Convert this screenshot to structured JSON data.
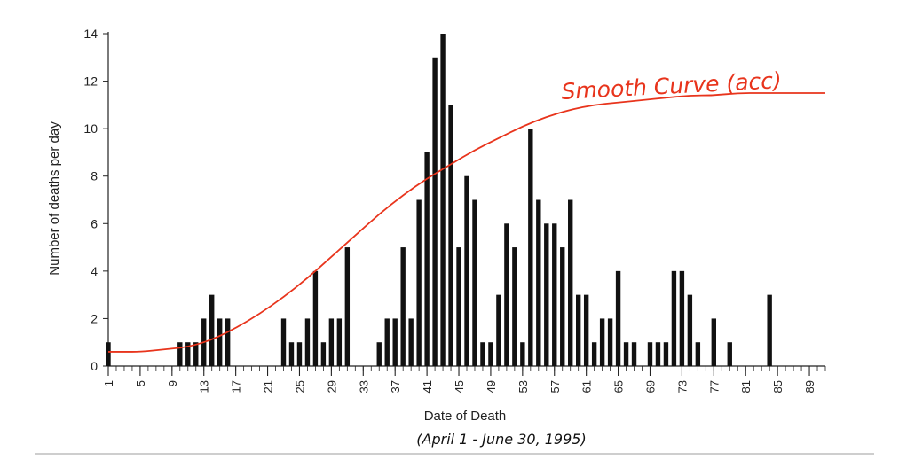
{
  "chart_data": {
    "type": "bar",
    "title": "",
    "xlabel": "Date of Death",
    "ylabel": "Number of deaths per day",
    "xlim": [
      1,
      91
    ],
    "ylim": [
      0,
      14
    ],
    "y_ticks": [
      0,
      2,
      4,
      6,
      8,
      10,
      12,
      14
    ],
    "x_tick_labels": [
      "1",
      "5",
      "9",
      "13",
      "17",
      "21",
      "25",
      "29",
      "33",
      "37",
      "41",
      "45",
      "49",
      "53",
      "57",
      "61",
      "65",
      "69",
      "73",
      "77",
      "81",
      "85",
      "89"
    ],
    "x": [
      1,
      2,
      3,
      4,
      5,
      6,
      7,
      8,
      9,
      10,
      11,
      12,
      13,
      14,
      15,
      16,
      17,
      18,
      19,
      20,
      21,
      22,
      23,
      24,
      25,
      26,
      27,
      28,
      29,
      30,
      31,
      32,
      33,
      34,
      35,
      36,
      37,
      38,
      39,
      40,
      41,
      42,
      43,
      44,
      45,
      46,
      47,
      48,
      49,
      50,
      51,
      52,
      53,
      54,
      55,
      56,
      57,
      58,
      59,
      60,
      61,
      62,
      63,
      64,
      65,
      66,
      67,
      68,
      69,
      70,
      71,
      72,
      73,
      74,
      75,
      76,
      77,
      78,
      79,
      80,
      81,
      82,
      83,
      84,
      85,
      86,
      87,
      88,
      89,
      90,
      91
    ],
    "values": [
      1,
      0,
      0,
      0,
      0,
      0,
      0,
      0,
      0,
      1,
      1,
      1,
      2,
      3,
      2,
      2,
      0,
      0,
      0,
      0,
      0,
      0,
      2,
      1,
      1,
      2,
      4,
      1,
      2,
      2,
      5,
      0,
      0,
      0,
      1,
      2,
      2,
      5,
      2,
      7,
      9,
      13,
      14,
      11,
      5,
      8,
      7,
      1,
      1,
      3,
      6,
      5,
      1,
      10,
      7,
      6,
      6,
      5,
      7,
      3,
      3,
      1,
      2,
      2,
      4,
      1,
      1,
      0,
      1,
      1,
      1,
      4,
      4,
      3,
      1,
      0,
      2,
      0,
      1,
      0,
      0,
      0,
      0,
      3,
      0,
      0,
      0,
      0,
      0,
      0,
      0
    ],
    "grid": false,
    "legend": "none",
    "annotation": {
      "label": "Smooth Curve (acc)",
      "color": "#e8341c",
      "curve_x": [
        1,
        3,
        5,
        8,
        11,
        14,
        17,
        20,
        23,
        26,
        29,
        32,
        35,
        38,
        41,
        44,
        47,
        50,
        53,
        56,
        59,
        62,
        65,
        68,
        71,
        74,
        77,
        80,
        83,
        86,
        89,
        91
      ],
      "curve_y": [
        0.6,
        0.6,
        0.6,
        0.7,
        0.8,
        1.1,
        1.6,
        2.2,
        2.9,
        3.7,
        4.6,
        5.5,
        6.4,
        7.2,
        7.9,
        8.5,
        9.1,
        9.6,
        10.1,
        10.5,
        10.8,
        11.0,
        11.1,
        11.2,
        11.3,
        11.4,
        11.4,
        11.5,
        11.5,
        11.5,
        11.5,
        11.5
      ]
    }
  },
  "footnote": "(April 1 - June 30, 1995)",
  "colors": {
    "bar": "#111111",
    "axis": "#222222",
    "curve": "#e8341c",
    "bottom_rule": "#bdbdbd"
  }
}
